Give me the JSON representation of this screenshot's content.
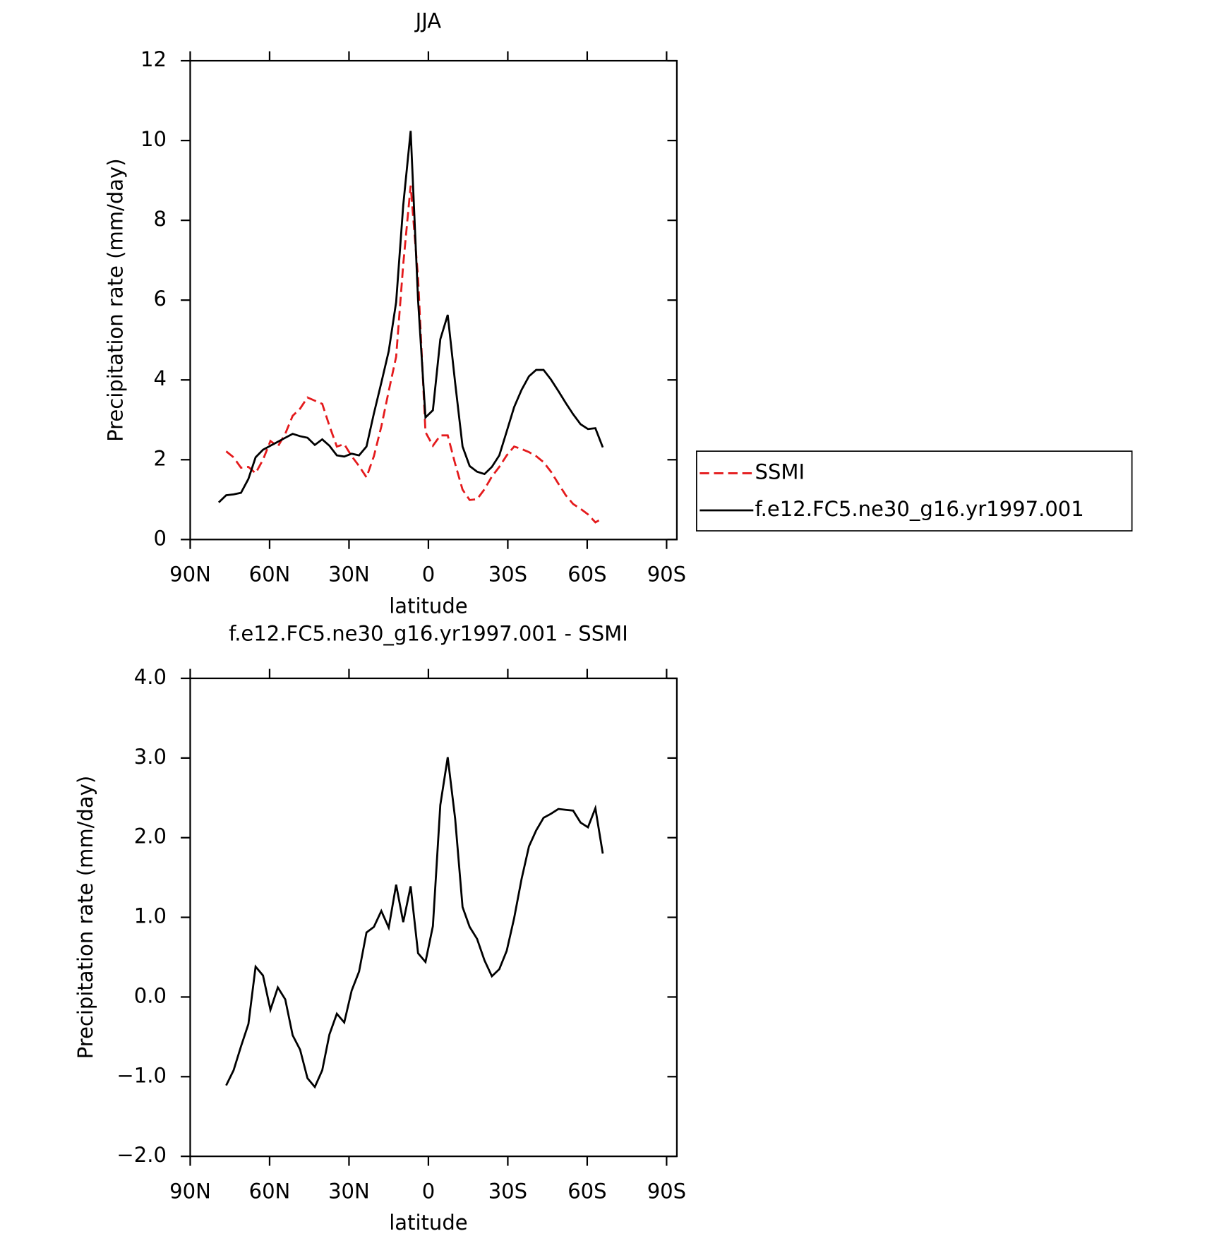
{
  "chart_data": [
    {
      "type": "line",
      "title": "JJA",
      "xlabel": "latitude",
      "ylabel": "Precipitation rate (mm/day)",
      "x": [
        79.2,
        76.4,
        73.6,
        70.8,
        68.0,
        65.3,
        62.5,
        59.7,
        56.9,
        54.1,
        51.3,
        48.5,
        45.7,
        42.9,
        40.1,
        37.4,
        34.6,
        31.8,
        29.0,
        26.2,
        23.4,
        20.6,
        17.8,
        15.0,
        12.2,
        9.5,
        6.7,
        3.9,
        1.1,
        -1.7,
        -4.5,
        -7.3,
        -10.1,
        -12.9,
        -15.6,
        -18.4,
        -21.2,
        -24.0,
        -26.8,
        -29.6,
        -32.4,
        -35.2,
        -38.0,
        -40.7,
        -43.5,
        -46.3,
        -49.1,
        -51.9,
        -54.7,
        -57.5,
        -60.3,
        -63.1,
        -65.9
      ],
      "series": [
        {
          "name": "SSMI",
          "color": "#e41a1c",
          "line_style": "dashed",
          "values": [
            null,
            2.21,
            2.06,
            1.8,
            1.82,
            1.66,
            2.0,
            2.47,
            2.33,
            2.65,
            3.1,
            3.28,
            3.56,
            3.48,
            3.4,
            2.85,
            2.33,
            2.39,
            2.09,
            1.84,
            1.56,
            2.09,
            2.83,
            3.72,
            4.58,
            6.9,
            8.87,
            6.56,
            2.69,
            2.35,
            2.61,
            2.61,
            1.9,
            1.25,
            0.99,
            1.01,
            1.26,
            1.58,
            1.82,
            2.11,
            2.33,
            2.27,
            2.19,
            2.09,
            1.94,
            1.7,
            1.4,
            1.11,
            0.89,
            0.77,
            0.63,
            0.43,
            0.53
          ]
        },
        {
          "name": "f.e12.FC5.ne30_g16.yr1997.001",
          "color": "#000000",
          "line_style": "solid",
          "values": [
            0.93,
            1.11,
            1.13,
            1.17,
            1.52,
            2.06,
            2.25,
            2.35,
            2.45,
            2.55,
            2.65,
            2.59,
            2.55,
            2.37,
            2.51,
            2.35,
            2.11,
            2.08,
            2.15,
            2.11,
            2.33,
            3.16,
            3.93,
            4.72,
            5.95,
            8.38,
            10.24,
            6.0,
            3.06,
            3.24,
            5.02,
            5.63,
            3.93,
            2.33,
            1.84,
            1.7,
            1.64,
            1.82,
            2.11,
            2.71,
            3.32,
            3.75,
            4.09,
            4.25,
            4.25,
            4.01,
            3.72,
            3.42,
            3.14,
            2.89,
            2.77,
            2.79,
            2.31
          ]
        }
      ],
      "xlim": [
        90,
        -90
      ],
      "xticks": [
        {
          "value": 90,
          "label": "90N"
        },
        {
          "value": 60,
          "label": "60N"
        },
        {
          "value": 30,
          "label": "30N"
        },
        0,
        {
          "value": -30,
          "label": "30S"
        },
        {
          "value": -60,
          "label": "60S"
        },
        {
          "value": -90,
          "label": "90S"
        }
      ],
      "ylim": [
        0,
        12
      ],
      "yticks": [
        0,
        2,
        4,
        6,
        8,
        10,
        12
      ],
      "grid": false,
      "legend": "right"
    },
    {
      "type": "line",
      "title": "f.e12.FC5.ne30_g16.yr1997.001 - SSMI",
      "xlabel": "latitude",
      "ylabel": "Precipitation rate (mm/day)",
      "x": [
        76.4,
        73.6,
        70.8,
        68.0,
        65.3,
        62.5,
        59.7,
        56.9,
        54.1,
        51.3,
        48.5,
        45.7,
        42.9,
        40.1,
        37.4,
        34.6,
        31.8,
        29.0,
        26.2,
        23.4,
        20.6,
        17.8,
        15.0,
        12.2,
        9.5,
        6.7,
        3.9,
        1.1,
        -1.7,
        -4.5,
        -7.3,
        -10.1,
        -12.9,
        -15.6,
        -18.4,
        -21.2,
        -24.0,
        -26.8,
        -29.6,
        -32.4,
        -35.2,
        -38.0,
        -40.7,
        -43.5,
        -46.3,
        -49.1,
        -51.9,
        -54.7,
        -57.5,
        -60.3,
        -63.1,
        -65.9
      ],
      "series": [
        {
          "color": "#000000",
          "line_style": "solid",
          "values": [
            -1.11,
            -0.92,
            -0.62,
            -0.34,
            0.38,
            0.27,
            -0.16,
            0.12,
            -0.03,
            -0.48,
            -0.66,
            -1.02,
            -1.13,
            -0.92,
            -0.47,
            -0.21,
            -0.32,
            0.08,
            0.32,
            0.81,
            0.88,
            1.08,
            0.87,
            1.41,
            0.94,
            1.39,
            0.55,
            0.44,
            0.89,
            2.41,
            3.01,
            2.24,
            1.13,
            0.88,
            0.73,
            0.46,
            0.26,
            0.35,
            0.58,
            0.99,
            1.48,
            1.89,
            2.09,
            2.25,
            2.3,
            2.36,
            2.35,
            2.34,
            2.19,
            2.13,
            2.37,
            1.8
          ]
        }
      ],
      "xlim": [
        90,
        -90
      ],
      "xticks": [
        {
          "value": 90,
          "label": "90N"
        },
        {
          "value": 60,
          "label": "60N"
        },
        {
          "value": 30,
          "label": "30N"
        },
        0,
        {
          "value": -30,
          "label": "30S"
        },
        {
          "value": -60,
          "label": "60S"
        },
        {
          "value": -90,
          "label": "90S"
        }
      ],
      "ylim": [
        -2,
        4
      ],
      "yticks": [
        {
          "value": -2,
          "label": "−2.0"
        },
        {
          "value": -1,
          "label": "−1.0"
        },
        {
          "value": 0,
          "label": "0.0"
        },
        {
          "value": 1,
          "label": "1.0"
        },
        {
          "value": 2,
          "label": "2.0"
        },
        {
          "value": 3,
          "label": "3.0"
        },
        {
          "value": 4,
          "label": "4.0"
        }
      ],
      "grid": false
    }
  ]
}
